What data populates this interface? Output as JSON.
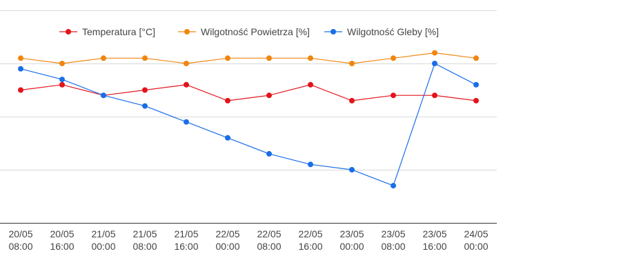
{
  "chart_data": {
    "type": "line",
    "x": [
      [
        "20/05",
        "08:00"
      ],
      [
        "20/05",
        "16:00"
      ],
      [
        "21/05",
        "00:00"
      ],
      [
        "21/05",
        "08:00"
      ],
      [
        "21/05",
        "16:00"
      ],
      [
        "22/05",
        "00:00"
      ],
      [
        "22/05",
        "08:00"
      ],
      [
        "22/05",
        "16:00"
      ],
      [
        "23/05",
        "00:00"
      ],
      [
        "23/05",
        "08:00"
      ],
      [
        "23/05",
        "16:00"
      ],
      [
        "24/05",
        "00:00"
      ]
    ],
    "series": [
      {
        "name": "Temperatura [°C]",
        "color": "#e3141b",
        "values": [
          25,
          26,
          24,
          25,
          26,
          23,
          24,
          26,
          23,
          24,
          24,
          23
        ]
      },
      {
        "name": "Wilgotność Powietrza [%]",
        "color": "#f0860f",
        "values": [
          31,
          30,
          31,
          31,
          30,
          31,
          31,
          31,
          30,
          31,
          32,
          31
        ]
      },
      {
        "name": "Wilgotność Gleby [%]",
        "color": "#1a6ee8",
        "values": [
          29,
          27,
          24,
          22,
          19,
          16,
          13,
          11,
          10,
          7,
          30,
          26
        ]
      }
    ],
    "ylim": [
      0,
      40
    ],
    "gridlines": [
      10,
      20,
      30,
      40
    ],
    "grid": true,
    "legend_position": "top-left",
    "title": "",
    "xlabel": "",
    "ylabel": ""
  }
}
